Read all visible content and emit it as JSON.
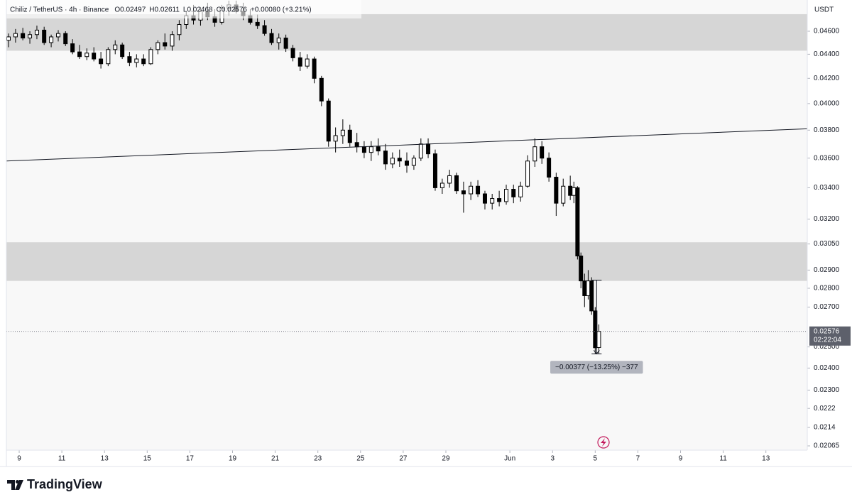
{
  "chart_data": {
    "type": "candlestick",
    "title": "Chiliz / TetherUS · 4h · Binance",
    "legend_values": [
      "O0.02497",
      "H0.02611",
      "L0.02468",
      "C0.02576",
      "+0.00080 (+3.21%)"
    ],
    "currency": "USDT",
    "current_price": 0.02576,
    "countdown": "02:22:04",
    "brand": "TradingView",
    "log_scale": true,
    "up_color": "#ffffff",
    "down_color": "#000000",
    "zone_color": "#d6d6d6",
    "xlim": [
      8.4,
      45.94
    ],
    "ylim": [
      0.02048,
      0.04886
    ],
    "xticks": [
      9,
      11,
      13,
      15,
      17,
      19,
      21,
      23,
      25,
      27,
      29,
      {
        "value": 32,
        "label": "Jun"
      },
      {
        "value": 34,
        "label": "3"
      },
      {
        "value": 36,
        "label": "5"
      },
      {
        "value": 38,
        "label": "7"
      },
      {
        "value": 40,
        "label": "9"
      },
      {
        "value": 42,
        "label": "11"
      },
      {
        "value": 44,
        "label": "13"
      }
    ],
    "yticks": [
      {
        "value": 0.046,
        "label": "0.04600"
      },
      {
        "value": 0.044,
        "label": "0.04400"
      },
      {
        "value": 0.042,
        "label": "0.04200"
      },
      {
        "value": 0.04,
        "label": "0.04000"
      },
      {
        "value": 0.038,
        "label": "0.03800"
      },
      {
        "value": 0.036,
        "label": "0.03600"
      },
      {
        "value": 0.034,
        "label": "0.03400"
      },
      {
        "value": 0.032,
        "label": "0.03200"
      },
      {
        "value": 0.0305,
        "label": "0.03050"
      },
      {
        "value": 0.029,
        "label": "0.02900"
      },
      {
        "value": 0.028,
        "label": "0.02800"
      },
      {
        "value": 0.027,
        "label": "0.02700"
      },
      {
        "value": 0.025,
        "label": "0.02500"
      },
      {
        "value": 0.024,
        "label": "0.02400"
      },
      {
        "value": 0.023,
        "label": "0.02300"
      },
      0.0222,
      0.0214,
      0.02065
    ],
    "zones": [
      {
        "y": [
          0.0443,
          0.04754
        ]
      },
      {
        "y": [
          0.0284,
          0.0306
        ]
      }
    ],
    "trendline": {
      "x": [
        8.4,
        45.94
      ],
      "y": [
        0.0358,
        0.0381
      ]
    },
    "measure": {
      "x": [
        35.83,
        36.3
      ],
      "y": [
        0.02844,
        0.02467
      ],
      "label": "−0.00377 (−13.25%) −377"
    },
    "candles": {
      "x": [
        8.5,
        8.83,
        9.17,
        9.5,
        9.83,
        10.17,
        10.5,
        10.83,
        11.17,
        11.5,
        11.83,
        12.17,
        12.5,
        12.83,
        13.17,
        13.5,
        13.83,
        14.17,
        14.5,
        14.83,
        15.17,
        15.5,
        15.83,
        16.17,
        16.5,
        16.83,
        17.17,
        17.5,
        17.83,
        18.17,
        18.5,
        18.83,
        19.17,
        19.5,
        19.83,
        20.17,
        20.5,
        20.83,
        21.17,
        21.5,
        21.83,
        22.17,
        22.5,
        22.83,
        23.17,
        23.5,
        23.83,
        24.17,
        24.5,
        24.83,
        25.17,
        25.5,
        25.83,
        26.17,
        26.5,
        26.83,
        27.17,
        27.5,
        27.83,
        28.17,
        28.5,
        28.83,
        29.17,
        29.5,
        29.83,
        30.17,
        30.5,
        30.83,
        31.17,
        31.5,
        31.83,
        32.17,
        32.5,
        32.83,
        33.17,
        33.5,
        33.83,
        34.17,
        34.5,
        34.83,
        35.0,
        35.17,
        35.33,
        35.5,
        35.67,
        35.83,
        36.0,
        36.17
      ],
      "open": [
        0.0452,
        0.0455,
        0.0458,
        0.0454,
        0.0457,
        0.0461,
        0.045,
        0.0455,
        0.0458,
        0.0449,
        0.0442,
        0.0438,
        0.0441,
        0.0436,
        0.0432,
        0.0444,
        0.0448,
        0.0438,
        0.0433,
        0.0436,
        0.0432,
        0.0444,
        0.045,
        0.0447,
        0.0457,
        0.0466,
        0.0474,
        0.047,
        0.0478,
        0.0473,
        0.0468,
        0.0481,
        0.0484,
        0.0478,
        0.0474,
        0.0468,
        0.0465,
        0.0458,
        0.045,
        0.0454,
        0.0445,
        0.0437,
        0.043,
        0.0436,
        0.042,
        0.0402,
        0.0372,
        0.0376,
        0.038,
        0.0371,
        0.0368,
        0.0364,
        0.0368,
        0.0365,
        0.0356,
        0.036,
        0.0358,
        0.0355,
        0.036,
        0.037,
        0.0363,
        0.034,
        0.0343,
        0.0348,
        0.0338,
        0.0336,
        0.0341,
        0.0336,
        0.033,
        0.0333,
        0.0331,
        0.0339,
        0.0334,
        0.0341,
        0.0358,
        0.0368,
        0.036,
        0.0347,
        0.033,
        0.0341,
        0.0335,
        0.034,
        0.0298,
        0.0284,
        0.0276,
        0.0284,
        0.0268,
        0.02497
      ],
      "high": [
        0.0458,
        0.0462,
        0.0463,
        0.046,
        0.0465,
        0.0464,
        0.0457,
        0.0461,
        0.046,
        0.0453,
        0.0448,
        0.0445,
        0.0446,
        0.0442,
        0.0446,
        0.0452,
        0.045,
        0.0442,
        0.044,
        0.044,
        0.0446,
        0.0452,
        0.0458,
        0.046,
        0.047,
        0.0478,
        0.0484,
        0.0482,
        0.0486,
        0.048,
        0.0484,
        0.0488,
        0.0488,
        0.0486,
        0.048,
        0.0475,
        0.047,
        0.0462,
        0.0458,
        0.0457,
        0.0448,
        0.0442,
        0.044,
        0.0438,
        0.0422,
        0.0404,
        0.0382,
        0.0388,
        0.0384,
        0.0378,
        0.0372,
        0.0372,
        0.0374,
        0.037,
        0.0364,
        0.0366,
        0.0364,
        0.0362,
        0.0374,
        0.0374,
        0.0366,
        0.0346,
        0.0352,
        0.035,
        0.0344,
        0.0344,
        0.0345,
        0.0338,
        0.0336,
        0.0338,
        0.0342,
        0.0342,
        0.0344,
        0.0362,
        0.0374,
        0.0372,
        0.0364,
        0.035,
        0.0346,
        0.0348,
        0.0344,
        0.0341,
        0.03,
        0.0288,
        0.029,
        0.0286,
        0.027,
        0.02611
      ],
      "low": [
        0.0446,
        0.045,
        0.0452,
        0.0449,
        0.0453,
        0.0448,
        0.0446,
        0.0451,
        0.0447,
        0.044,
        0.0436,
        0.0435,
        0.0434,
        0.0428,
        0.043,
        0.044,
        0.0436,
        0.043,
        0.0429,
        0.043,
        0.0431,
        0.044,
        0.0444,
        0.0443,
        0.0452,
        0.0462,
        0.0466,
        0.0465,
        0.047,
        0.0464,
        0.0466,
        0.0474,
        0.0476,
        0.047,
        0.0466,
        0.0462,
        0.0456,
        0.0448,
        0.0444,
        0.0442,
        0.0434,
        0.0426,
        0.0428,
        0.0416,
        0.0398,
        0.0368,
        0.0364,
        0.037,
        0.0368,
        0.0364,
        0.036,
        0.0358,
        0.0362,
        0.0352,
        0.0353,
        0.0354,
        0.035,
        0.0352,
        0.0358,
        0.036,
        0.0338,
        0.0336,
        0.034,
        0.0336,
        0.0324,
        0.0332,
        0.0334,
        0.0326,
        0.0326,
        0.0328,
        0.0329,
        0.033,
        0.0331,
        0.034,
        0.0354,
        0.0356,
        0.0344,
        0.0322,
        0.0328,
        0.0332,
        0.033,
        0.0296,
        0.028,
        0.027,
        0.0274,
        0.0266,
        0.02467,
        0.02468
      ],
      "close": [
        0.0455,
        0.0458,
        0.0454,
        0.0457,
        0.0461,
        0.045,
        0.0455,
        0.0458,
        0.0449,
        0.0442,
        0.0438,
        0.0441,
        0.0436,
        0.0432,
        0.0444,
        0.0448,
        0.0438,
        0.0433,
        0.0436,
        0.0432,
        0.0444,
        0.045,
        0.0447,
        0.0457,
        0.0466,
        0.0474,
        0.047,
        0.0478,
        0.0473,
        0.0468,
        0.0481,
        0.0484,
        0.0478,
        0.0474,
        0.0468,
        0.0465,
        0.0458,
        0.045,
        0.0454,
        0.0445,
        0.0437,
        0.043,
        0.0436,
        0.042,
        0.0402,
        0.0372,
        0.0376,
        0.038,
        0.0371,
        0.0368,
        0.0364,
        0.0368,
        0.0365,
        0.0356,
        0.036,
        0.0358,
        0.0355,
        0.036,
        0.037,
        0.0363,
        0.034,
        0.0343,
        0.0348,
        0.0338,
        0.0336,
        0.0341,
        0.0336,
        0.033,
        0.0333,
        0.0331,
        0.0339,
        0.0334,
        0.0341,
        0.0358,
        0.0368,
        0.036,
        0.0347,
        0.033,
        0.0341,
        0.0335,
        0.034,
        0.0298,
        0.0284,
        0.0276,
        0.0284,
        0.0268,
        0.02496,
        0.02576
      ]
    }
  }
}
